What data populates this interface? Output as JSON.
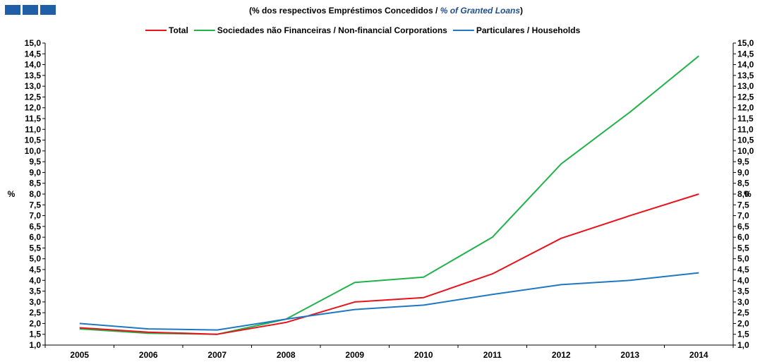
{
  "header": {
    "subtitle_pt": "(% dos respectivos Empréstimos Concedidos /",
    "subtitle_en": "% of Granted Loans",
    "subtitle_close": ")"
  },
  "chart_data": {
    "type": "line",
    "title": "",
    "subtitle": "(% dos respectivos Empréstimos Concedidos / % of Granted Loans)",
    "xlabel": "",
    "ylabel": "%",
    "ylabel_right": "%",
    "x": [
      "2005",
      "2006",
      "2007",
      "2008",
      "2009",
      "2010",
      "2011",
      "2012",
      "2013",
      "2014"
    ],
    "ylim": [
      1.0,
      15.0
    ],
    "ytick_step": 0.5,
    "ytick_labels": [
      "1,0",
      "1,5",
      "2,0",
      "2,5",
      "3,0",
      "3,5",
      "4,0",
      "4,5",
      "5,0",
      "5,5",
      "6,0",
      "6,5",
      "7,0",
      "7,5",
      "8,0",
      "8,5",
      "9,0",
      "9,5",
      "10,0",
      "10,5",
      "11,0",
      "11,5",
      "12,0",
      "12,5",
      "13,0",
      "13,5",
      "14,0",
      "14,5",
      "15,0"
    ],
    "grid": false,
    "legend_position": "top-center",
    "series": [
      {
        "name": "Total",
        "color": "#e8131b",
        "values": [
          1.8,
          1.6,
          1.5,
          2.05,
          3.0,
          3.2,
          4.3,
          5.95,
          7.0,
          8.0
        ]
      },
      {
        "name": "Sociedades não Financeiras / Non-financial Corporations",
        "color": "#21b24b",
        "values": [
          1.75,
          1.55,
          1.5,
          2.2,
          3.9,
          4.15,
          6.0,
          9.4,
          11.8,
          14.4
        ]
      },
      {
        "name": "Particulares / Households",
        "color": "#1f78c1",
        "values": [
          2.0,
          1.75,
          1.7,
          2.2,
          2.65,
          2.85,
          3.35,
          3.8,
          4.0,
          4.35
        ]
      }
    ]
  }
}
